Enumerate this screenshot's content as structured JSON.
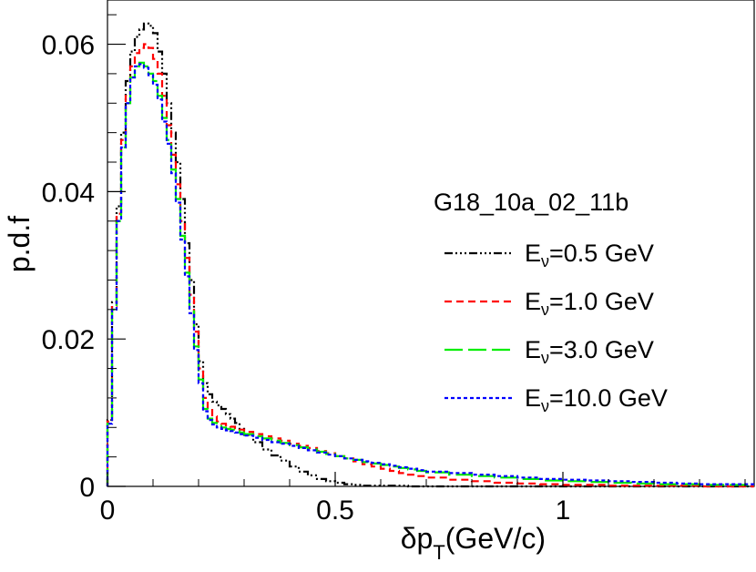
{
  "chart_data": {
    "type": "line",
    "style": "histogram-step",
    "xlabel_main": "δp",
    "xlabel_sub": "T",
    "xlabel_unit": "(GeV/c)",
    "ylabel": "p.d.f",
    "xlim": [
      0,
      1.42
    ],
    "ylim": [
      0,
      0.066
    ],
    "xticks": [
      0,
      0.5,
      1
    ],
    "xtick_labels": [
      "0",
      "0.5",
      "1"
    ],
    "yticks": [
      0,
      0.02,
      0.04,
      0.06
    ],
    "ytick_labels": [
      "0",
      "0.02",
      "0.04",
      "0.06"
    ],
    "legend_title": "G18_10a_02_11b",
    "legend_position": "right",
    "bin_edges": [
      0,
      0.01,
      0.02,
      0.03,
      0.04,
      0.05,
      0.06,
      0.07,
      0.08,
      0.09,
      0.1,
      0.11,
      0.12,
      0.13,
      0.14,
      0.15,
      0.16,
      0.17,
      0.18,
      0.19,
      0.2,
      0.21,
      0.22,
      0.23,
      0.24,
      0.25,
      0.26,
      0.27,
      0.28,
      0.29,
      0.3,
      0.32,
      0.34,
      0.36,
      0.38,
      0.4,
      0.42,
      0.44,
      0.46,
      0.48,
      0.5,
      0.52,
      0.54,
      0.56,
      0.58,
      0.6,
      0.62,
      0.64,
      0.66,
      0.68,
      0.7,
      0.75,
      0.8,
      0.85,
      0.9,
      0.95,
      1.0,
      1.05,
      1.1,
      1.15,
      1.2,
      1.25,
      1.3,
      1.35,
      1.42
    ],
    "series": [
      {
        "name_prefix": "E",
        "name_sub": "ν",
        "name_suffix": "=0.5 GeV",
        "color": "#000000",
        "dash": "9,3,2,3,2,3,2,3",
        "values": [
          0.009,
          0.025,
          0.038,
          0.048,
          0.055,
          0.059,
          0.061,
          0.062,
          0.0628,
          0.0625,
          0.0615,
          0.059,
          0.056,
          0.052,
          0.048,
          0.044,
          0.039,
          0.033,
          0.028,
          0.022,
          0.017,
          0.014,
          0.0125,
          0.0115,
          0.011,
          0.0105,
          0.0098,
          0.0092,
          0.0086,
          0.0078,
          0.007,
          0.006,
          0.005,
          0.0042,
          0.0035,
          0.0027,
          0.002,
          0.0015,
          0.001,
          0.0007,
          0.0005,
          0.0003,
          0.0002,
          0.0001,
          0.0001,
          0.0001,
          0.0001,
          0.0001,
          0.0,
          0.0,
          0.0,
          0.0,
          0.0,
          0.0,
          0.0,
          0.0,
          0.0,
          0.0,
          0.0,
          0.0,
          0.0,
          0.0,
          0.0,
          0.0
        ]
      },
      {
        "name_prefix": "E",
        "name_sub": "ν",
        "name_suffix": "=1.0 GeV",
        "color": "#ff0000",
        "dash": "8,5",
        "values": [
          0.0088,
          0.0245,
          0.037,
          0.047,
          0.053,
          0.057,
          0.0588,
          0.0595,
          0.06,
          0.0595,
          0.058,
          0.056,
          0.053,
          0.049,
          0.045,
          0.041,
          0.036,
          0.031,
          0.026,
          0.021,
          0.016,
          0.012,
          0.0105,
          0.0095,
          0.0088,
          0.0085,
          0.0083,
          0.0081,
          0.0079,
          0.0077,
          0.0074,
          0.0071,
          0.0068,
          0.0065,
          0.0062,
          0.0058,
          0.0055,
          0.0052,
          0.0048,
          0.0045,
          0.0041,
          0.0038,
          0.0034,
          0.003,
          0.0027,
          0.0024,
          0.0021,
          0.0018,
          0.0016,
          0.0014,
          0.0012,
          0.0009,
          0.0007,
          0.0005,
          0.0004,
          0.0003,
          0.0002,
          0.0002,
          0.0001,
          0.0001,
          0.0001,
          0.0001,
          0.0,
          0.0
        ]
      },
      {
        "name_prefix": "E",
        "name_sub": "ν",
        "name_suffix": "=3.0 GeV",
        "color": "#00ee00",
        "dash": "20,6",
        "values": [
          0.0085,
          0.024,
          0.036,
          0.046,
          0.052,
          0.0555,
          0.057,
          0.0575,
          0.057,
          0.056,
          0.055,
          0.053,
          0.05,
          0.047,
          0.043,
          0.039,
          0.034,
          0.029,
          0.024,
          0.019,
          0.0145,
          0.0105,
          0.0092,
          0.0086,
          0.0082,
          0.008,
          0.0078,
          0.0077,
          0.0075,
          0.0073,
          0.0071,
          0.0068,
          0.0065,
          0.0062,
          0.0059,
          0.0056,
          0.0053,
          0.005,
          0.0047,
          0.0044,
          0.0041,
          0.0038,
          0.0036,
          0.0033,
          0.0031,
          0.0029,
          0.0027,
          0.0025,
          0.0023,
          0.0021,
          0.0019,
          0.0016,
          0.0014,
          0.0012,
          0.001,
          0.0008,
          0.0007,
          0.0006,
          0.0005,
          0.0004,
          0.0003,
          0.0003,
          0.0002,
          0.0002
        ]
      },
      {
        "name_prefix": "E",
        "name_sub": "ν",
        "name_suffix": "=10.0 GeV",
        "color": "#0000ff",
        "dash": "4,3",
        "values": [
          0.0085,
          0.024,
          0.036,
          0.046,
          0.052,
          0.0555,
          0.057,
          0.0573,
          0.0568,
          0.0558,
          0.0545,
          0.0525,
          0.0495,
          0.0465,
          0.0425,
          0.0385,
          0.0335,
          0.0285,
          0.0235,
          0.0185,
          0.014,
          0.0102,
          0.009,
          0.0084,
          0.008,
          0.0078,
          0.0076,
          0.0075,
          0.0073,
          0.0071,
          0.0069,
          0.0066,
          0.0063,
          0.006,
          0.0058,
          0.0055,
          0.0052,
          0.0049,
          0.0046,
          0.0043,
          0.0041,
          0.0038,
          0.0036,
          0.0034,
          0.0032,
          0.003,
          0.0028,
          0.0026,
          0.0024,
          0.0022,
          0.002,
          0.0018,
          0.0016,
          0.0014,
          0.0012,
          0.001,
          0.0009,
          0.0008,
          0.0007,
          0.0006,
          0.0005,
          0.0004,
          0.0003,
          0.0003
        ]
      }
    ]
  }
}
